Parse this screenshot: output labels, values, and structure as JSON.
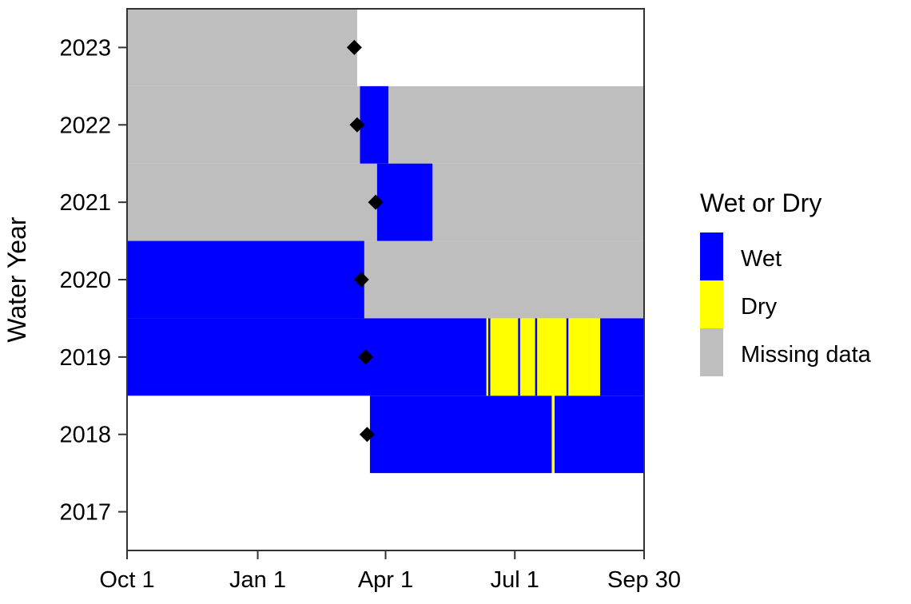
{
  "chart_data": {
    "type": "heatmap",
    "title": "",
    "xlabel": "",
    "ylabel": "Water Year",
    "x_ticks": [
      "Oct 1",
      "Jan 1",
      "Apr 1",
      "Jul 1",
      "Sep 30"
    ],
    "x_tick_days": [
      0,
      92,
      182,
      273,
      364
    ],
    "x_range_days": [
      0,
      364
    ],
    "y_ticks": [
      "2017",
      "2018",
      "2019",
      "2020",
      "2021",
      "2022",
      "2023"
    ],
    "y_range": [
      2016.5,
      2023.5
    ],
    "grid": false,
    "legend": {
      "title": "Wet or Dry",
      "position": "right",
      "entries": [
        {
          "label": "Wet",
          "color": "#0000FF"
        },
        {
          "label": "Dry",
          "color": "#FFFF00"
        },
        {
          "label": "Missing data",
          "color": "#BEBEBE"
        }
      ]
    },
    "colors": {
      "Wet": "#0000FF",
      "Dry": "#FFFF00",
      "Missing data": "#BEBEBE"
    },
    "series": [
      {
        "name": "Missing data",
        "segments": [
          {
            "year": 2023,
            "start": "Oct 1",
            "end": "Mar 12"
          },
          {
            "year": 2022,
            "start": "Oct 1",
            "end": "Mar 14"
          },
          {
            "year": 2022,
            "start": "Apr 3",
            "end": "Sep 30"
          },
          {
            "year": 2021,
            "start": "Oct 1",
            "end": "Mar 26"
          },
          {
            "year": 2021,
            "start": "May 4",
            "end": "Sep 30"
          },
          {
            "year": 2020,
            "start": "Mar 17",
            "end": "Sep 30"
          }
        ]
      },
      {
        "name": "Wet",
        "segments": [
          {
            "year": 2022,
            "start": "Mar 14",
            "end": "Apr 3"
          },
          {
            "year": 2021,
            "start": "Mar 26",
            "end": "May 4"
          },
          {
            "year": 2020,
            "start": "Oct 1",
            "end": "Mar 17"
          },
          {
            "year": 2019,
            "start": "Oct 1",
            "end": "Jun 11"
          },
          {
            "year": 2019,
            "start": "Aug 30",
            "end": "Sep 30"
          },
          {
            "year": 2018,
            "start": "Mar 21",
            "end": "Jul 27"
          },
          {
            "year": 2018,
            "start": "Jul 29",
            "end": "Sep 30"
          }
        ]
      },
      {
        "name": "Dry",
        "segments": [
          {
            "year": 2019,
            "start": "Jun 11",
            "end": "Aug 30"
          },
          {
            "year": 2018,
            "start": "Jul 27",
            "end": "Jul 29"
          }
        ]
      }
    ],
    "wet_dividers": [
      {
        "year": 2019,
        "date": "Jun 13"
      },
      {
        "year": 2019,
        "date": "Jun 34"
      },
      {
        "year": 2019,
        "date": "Jul 16"
      },
      {
        "year": 2019,
        "date": "Aug 7"
      }
    ],
    "points": [
      {
        "name": "marker",
        "year": 2023,
        "date": "Mar 10"
      },
      {
        "name": "marker",
        "year": 2022,
        "date": "Mar 12"
      },
      {
        "name": "marker",
        "year": 2021,
        "date": "Mar 25"
      },
      {
        "name": "marker",
        "year": 2020,
        "date": "Mar 15"
      },
      {
        "name": "marker",
        "year": 2019,
        "date": "Mar 18"
      },
      {
        "name": "marker",
        "year": 2018,
        "date": "Mar 19"
      }
    ]
  }
}
